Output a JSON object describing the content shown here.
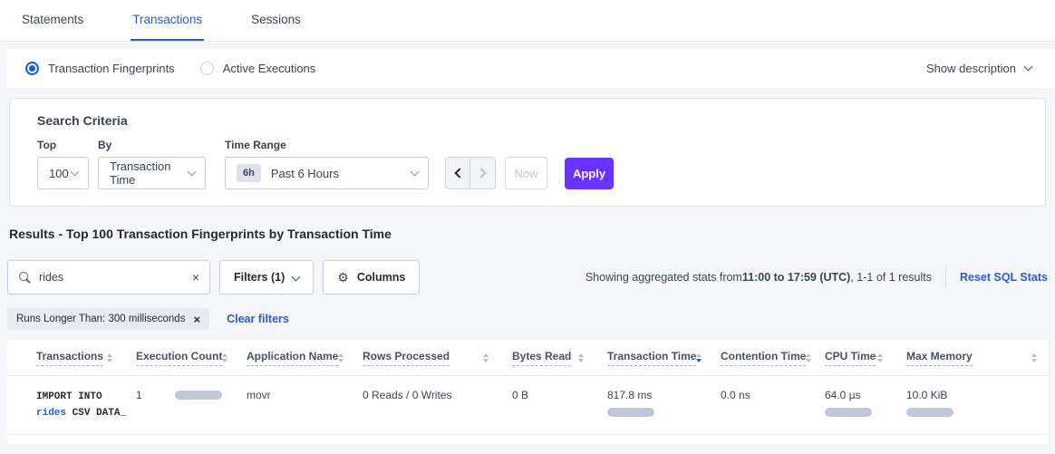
{
  "tabs": {
    "items": [
      {
        "label": "Statements"
      },
      {
        "label": "Transactions"
      },
      {
        "label": "Sessions"
      }
    ]
  },
  "view_toggle": {
    "fingerprints_label": "Transaction Fingerprints",
    "active_executions_label": "Active Executions",
    "show_description_label": "Show description"
  },
  "search_criteria": {
    "title": "Search Criteria",
    "top_label": "Top",
    "top_value": "100",
    "by_label": "By",
    "by_value": "Transaction Time",
    "time_range_label": "Time Range",
    "time_range_badge": "6h",
    "time_range_value": "Past 6 Hours",
    "now_label": "Now",
    "apply_label": "Apply"
  },
  "results": {
    "title": "Results - Top 100 Transaction Fingerprints by Transaction Time",
    "search_value": "rides",
    "filters_label": "Filters (1)",
    "columns_label": "Columns",
    "stats_prefix": "Showing aggregated stats from ",
    "stats_bold": "11:00 to 17:59 (UTC)",
    "stats_suffix": ", 1-1 of 1 results",
    "reset_sql_stats_label": "Reset SQL Stats",
    "filter_chip_label": "Runs Longer Than: 300 milliseconds",
    "clear_filters_label": "Clear filters"
  },
  "table": {
    "columns": [
      "Transactions",
      "Execution Count",
      "Application Name",
      "Rows Processed",
      "Bytes Read",
      "Transaction Time",
      "Contention Time",
      "CPU Time",
      "Max Memory"
    ],
    "sorted_column": "Transaction Time",
    "sort_direction": "desc",
    "rows": [
      {
        "transaction_line1": "IMPORT INTO",
        "transaction_link": "rides",
        "transaction_line2_rest": " CSV DATA_",
        "execution_count": "1",
        "application_name": "movr",
        "rows_processed": "0 Reads / 0 Writes",
        "bytes_read": "0 B",
        "transaction_time": "817.8 ms",
        "contention_time": "0.0 ns",
        "cpu_time": "64.0 µs",
        "max_memory": "10.0 KiB"
      }
    ]
  },
  "colors": {
    "accent_blue": "#2a5ada",
    "apply_purple": "#6933ff",
    "bar_fill": "#c0c7d9",
    "page_background": "#f4f6fa"
  }
}
